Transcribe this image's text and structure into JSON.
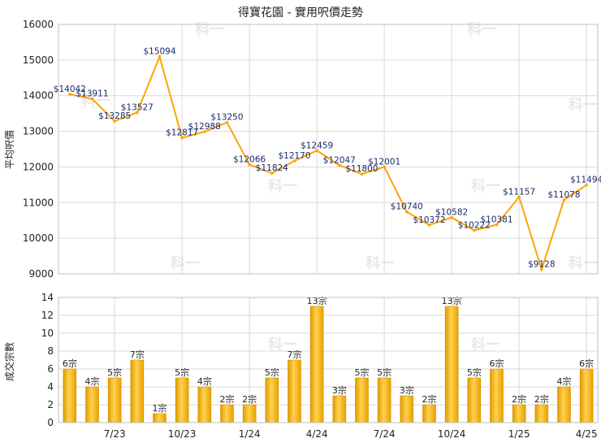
{
  "chart_data": [
    {
      "type": "line",
      "title": "得寶花園 - 實用呎價走勢",
      "ylabel": "平均呎價",
      "ylim": [
        9000,
        16000
      ],
      "yticks": [
        9000,
        10000,
        11000,
        12000,
        13000,
        14000,
        15000,
        16000
      ],
      "x_tick_labels": [
        "7/23",
        "10/23",
        "1/24",
        "4/24",
        "7/24",
        "10/24",
        "1/25",
        "4/25"
      ],
      "grid": true,
      "color": "#ffa500",
      "series": [
        {
          "values": [
            14042,
            13911,
            13285,
            13527,
            15094,
            12817,
            12988,
            13250,
            12066,
            11824,
            12170,
            12459,
            12047,
            11800,
            12001,
            10740,
            10372,
            10582,
            10222,
            10381,
            11157,
            9128,
            11078,
            11494
          ],
          "labels": [
            "$14042",
            "$13911",
            "$13285",
            "$13527",
            "$15094",
            "$12817",
            "$12988",
            "$13250",
            "$12066",
            "$11824",
            "$12170",
            "$12459",
            "$12047",
            "$11800",
            "$12001",
            "$10740",
            "$10372",
            "$10582",
            "$10222",
            "$10381",
            "$11157",
            "$9128",
            "$11078",
            "$11494"
          ]
        }
      ]
    },
    {
      "type": "bar",
      "ylabel": "成交宗數",
      "ylim": [
        0,
        14
      ],
      "yticks": [
        0,
        2,
        4,
        6,
        8,
        10,
        12,
        14
      ],
      "x_tick_labels": [
        "7/23",
        "10/23",
        "1/24",
        "4/24",
        "7/24",
        "10/24",
        "1/25",
        "4/25"
      ],
      "grid": true,
      "color": "#f2a900",
      "values": [
        6,
        4,
        5,
        7,
        1,
        5,
        4,
        2,
        2,
        5,
        7,
        13,
        3,
        5,
        5,
        3,
        2,
        13,
        5,
        6,
        2,
        2,
        4,
        6
      ],
      "labels": [
        "6宗",
        "4宗",
        "5宗",
        "7宗",
        "1宗",
        "5宗",
        "4宗",
        "2宗",
        "2宗",
        "5宗",
        "7宗",
        "13宗",
        "3宗",
        "5宗",
        "5宗",
        "3宗",
        "2宗",
        "13宗",
        "5宗",
        "6宗",
        "2宗",
        "2宗",
        "4宗",
        "6宗"
      ]
    }
  ]
}
